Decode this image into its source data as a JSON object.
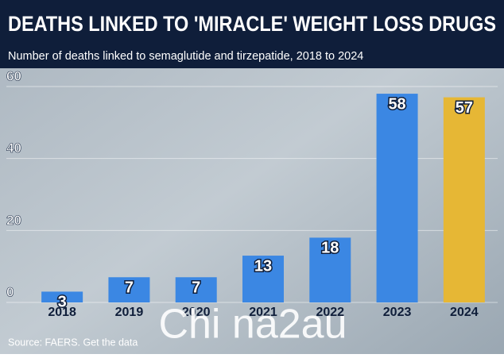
{
  "chart_data": {
    "type": "bar",
    "title": "DEATHS LINKED TO 'MIRACLE' WEIGHT LOSS DRUGS",
    "subtitle": "Number of deaths linked to semaglutide and tirzepatide, 2018 to 2024",
    "categories": [
      "2018",
      "2019",
      "2020",
      "2021",
      "2022",
      "2023",
      "2024"
    ],
    "values": [
      3,
      7,
      7,
      13,
      18,
      58,
      57
    ],
    "colors": [
      "#3b87e3",
      "#3b87e3",
      "#3b87e3",
      "#3b87e3",
      "#3b87e3",
      "#3b87e3",
      "#e6b735"
    ],
    "ylim": [
      0,
      60
    ],
    "yticks": [
      0,
      20,
      40,
      60
    ],
    "grid": true,
    "source": "Source: FAERS. Get the data",
    "watermark": "Chi na2au"
  }
}
